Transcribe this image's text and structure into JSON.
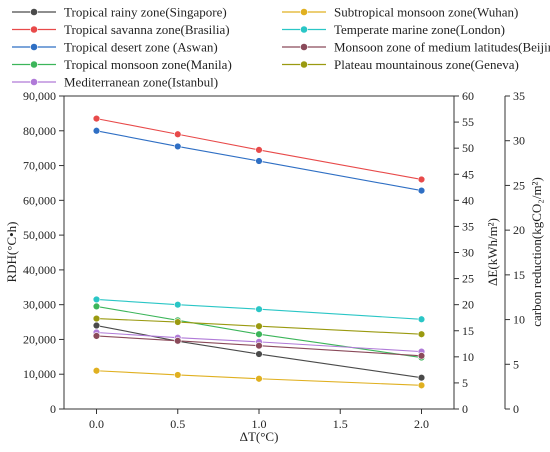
{
  "chart_data": {
    "type": "line",
    "x": [
      0.0,
      0.5,
      1.0,
      2.0
    ],
    "x_ticks": [
      "0.0",
      "0.5",
      "1.0",
      "1.5",
      "2.0"
    ],
    "xlim": [
      -0.2,
      2.2
    ],
    "xlabel": "ΔT(°C)",
    "y_left": {
      "label": "RDH(°C•h)",
      "lim": [
        0,
        90000
      ],
      "ticks": [
        "0",
        "10,000",
        "20,000",
        "30,000",
        "40,000",
        "50,000",
        "60,000",
        "70,000",
        "80,000",
        "90,000"
      ]
    },
    "y_mid": {
      "label": "ΔE(kWh/m²)",
      "lim": [
        0,
        60
      ],
      "ticks": [
        "0",
        "5",
        "10",
        "15",
        "20",
        "25",
        "30",
        "35",
        "40",
        "45",
        "50",
        "55",
        "60"
      ]
    },
    "y_right": {
      "label": "carbon reduction(kgCO₂/m²)",
      "lim": [
        0,
        35
      ],
      "ticks": [
        "0",
        "5",
        "10",
        "15",
        "20",
        "25",
        "30",
        "35"
      ]
    },
    "legend_position": "top",
    "series": [
      {
        "name": "Tropical rainy zone(Singapore)",
        "color": "#4a4a4a",
        "values": [
          24000,
          19500,
          15800,
          9000
        ]
      },
      {
        "name": "Tropical savanna zone(Brasilia)",
        "color": "#e84a4a",
        "values": [
          83500,
          79000,
          74500,
          66000
        ]
      },
      {
        "name": "Tropical desert zone (Aswan)",
        "color": "#2f6fc4",
        "values": [
          80000,
          75500,
          71300,
          62800
        ]
      },
      {
        "name": "Tropical monsoon zone(Manila)",
        "color": "#3cb55a",
        "values": [
          29500,
          25500,
          21500,
          14800
        ]
      },
      {
        "name": "Mediterranean zone(Istanbul)",
        "color": "#b07ad8",
        "values": [
          22000,
          20500,
          19300,
          16500
        ]
      },
      {
        "name": "Subtropical monsoon zone(Wuhan)",
        "color": "#e0b020",
        "values": [
          11000,
          9800,
          8700,
          6800
        ]
      },
      {
        "name": "Temperate marine zone(London)",
        "color": "#2ac6c6",
        "values": [
          31500,
          30000,
          28700,
          25800
        ]
      },
      {
        "name": "Monsoon zone of medium latitudes(Beijing)",
        "color": "#8a4a5a",
        "values": [
          21000,
          19600,
          18200,
          15300
        ]
      },
      {
        "name": "Plateau mountainous zone(Geneva)",
        "color": "#9a9a10",
        "values": [
          26000,
          25000,
          23800,
          21500
        ]
      }
    ]
  }
}
